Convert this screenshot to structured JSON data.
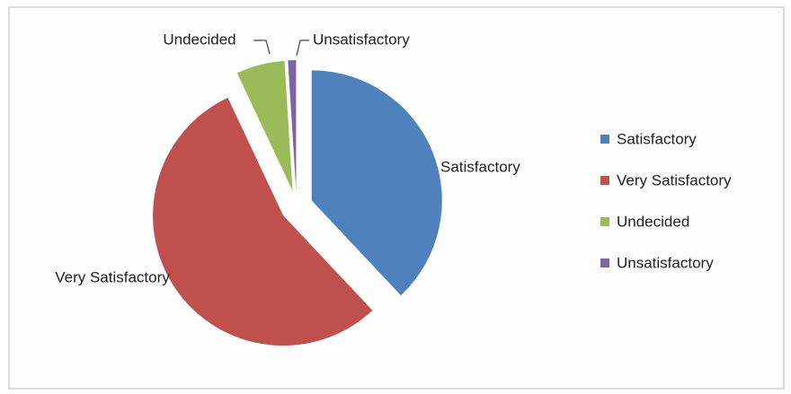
{
  "chart_data": {
    "type": "pie",
    "categories": [
      "Satisfactory",
      "Very Satisfactory",
      "Undecided",
      "Unsatisfactory"
    ],
    "values": [
      38,
      55,
      6,
      1
    ],
    "colors": [
      "#4f81bd",
      "#c0504d",
      "#9bbb59",
      "#8064a2"
    ],
    "legend": "right"
  }
}
